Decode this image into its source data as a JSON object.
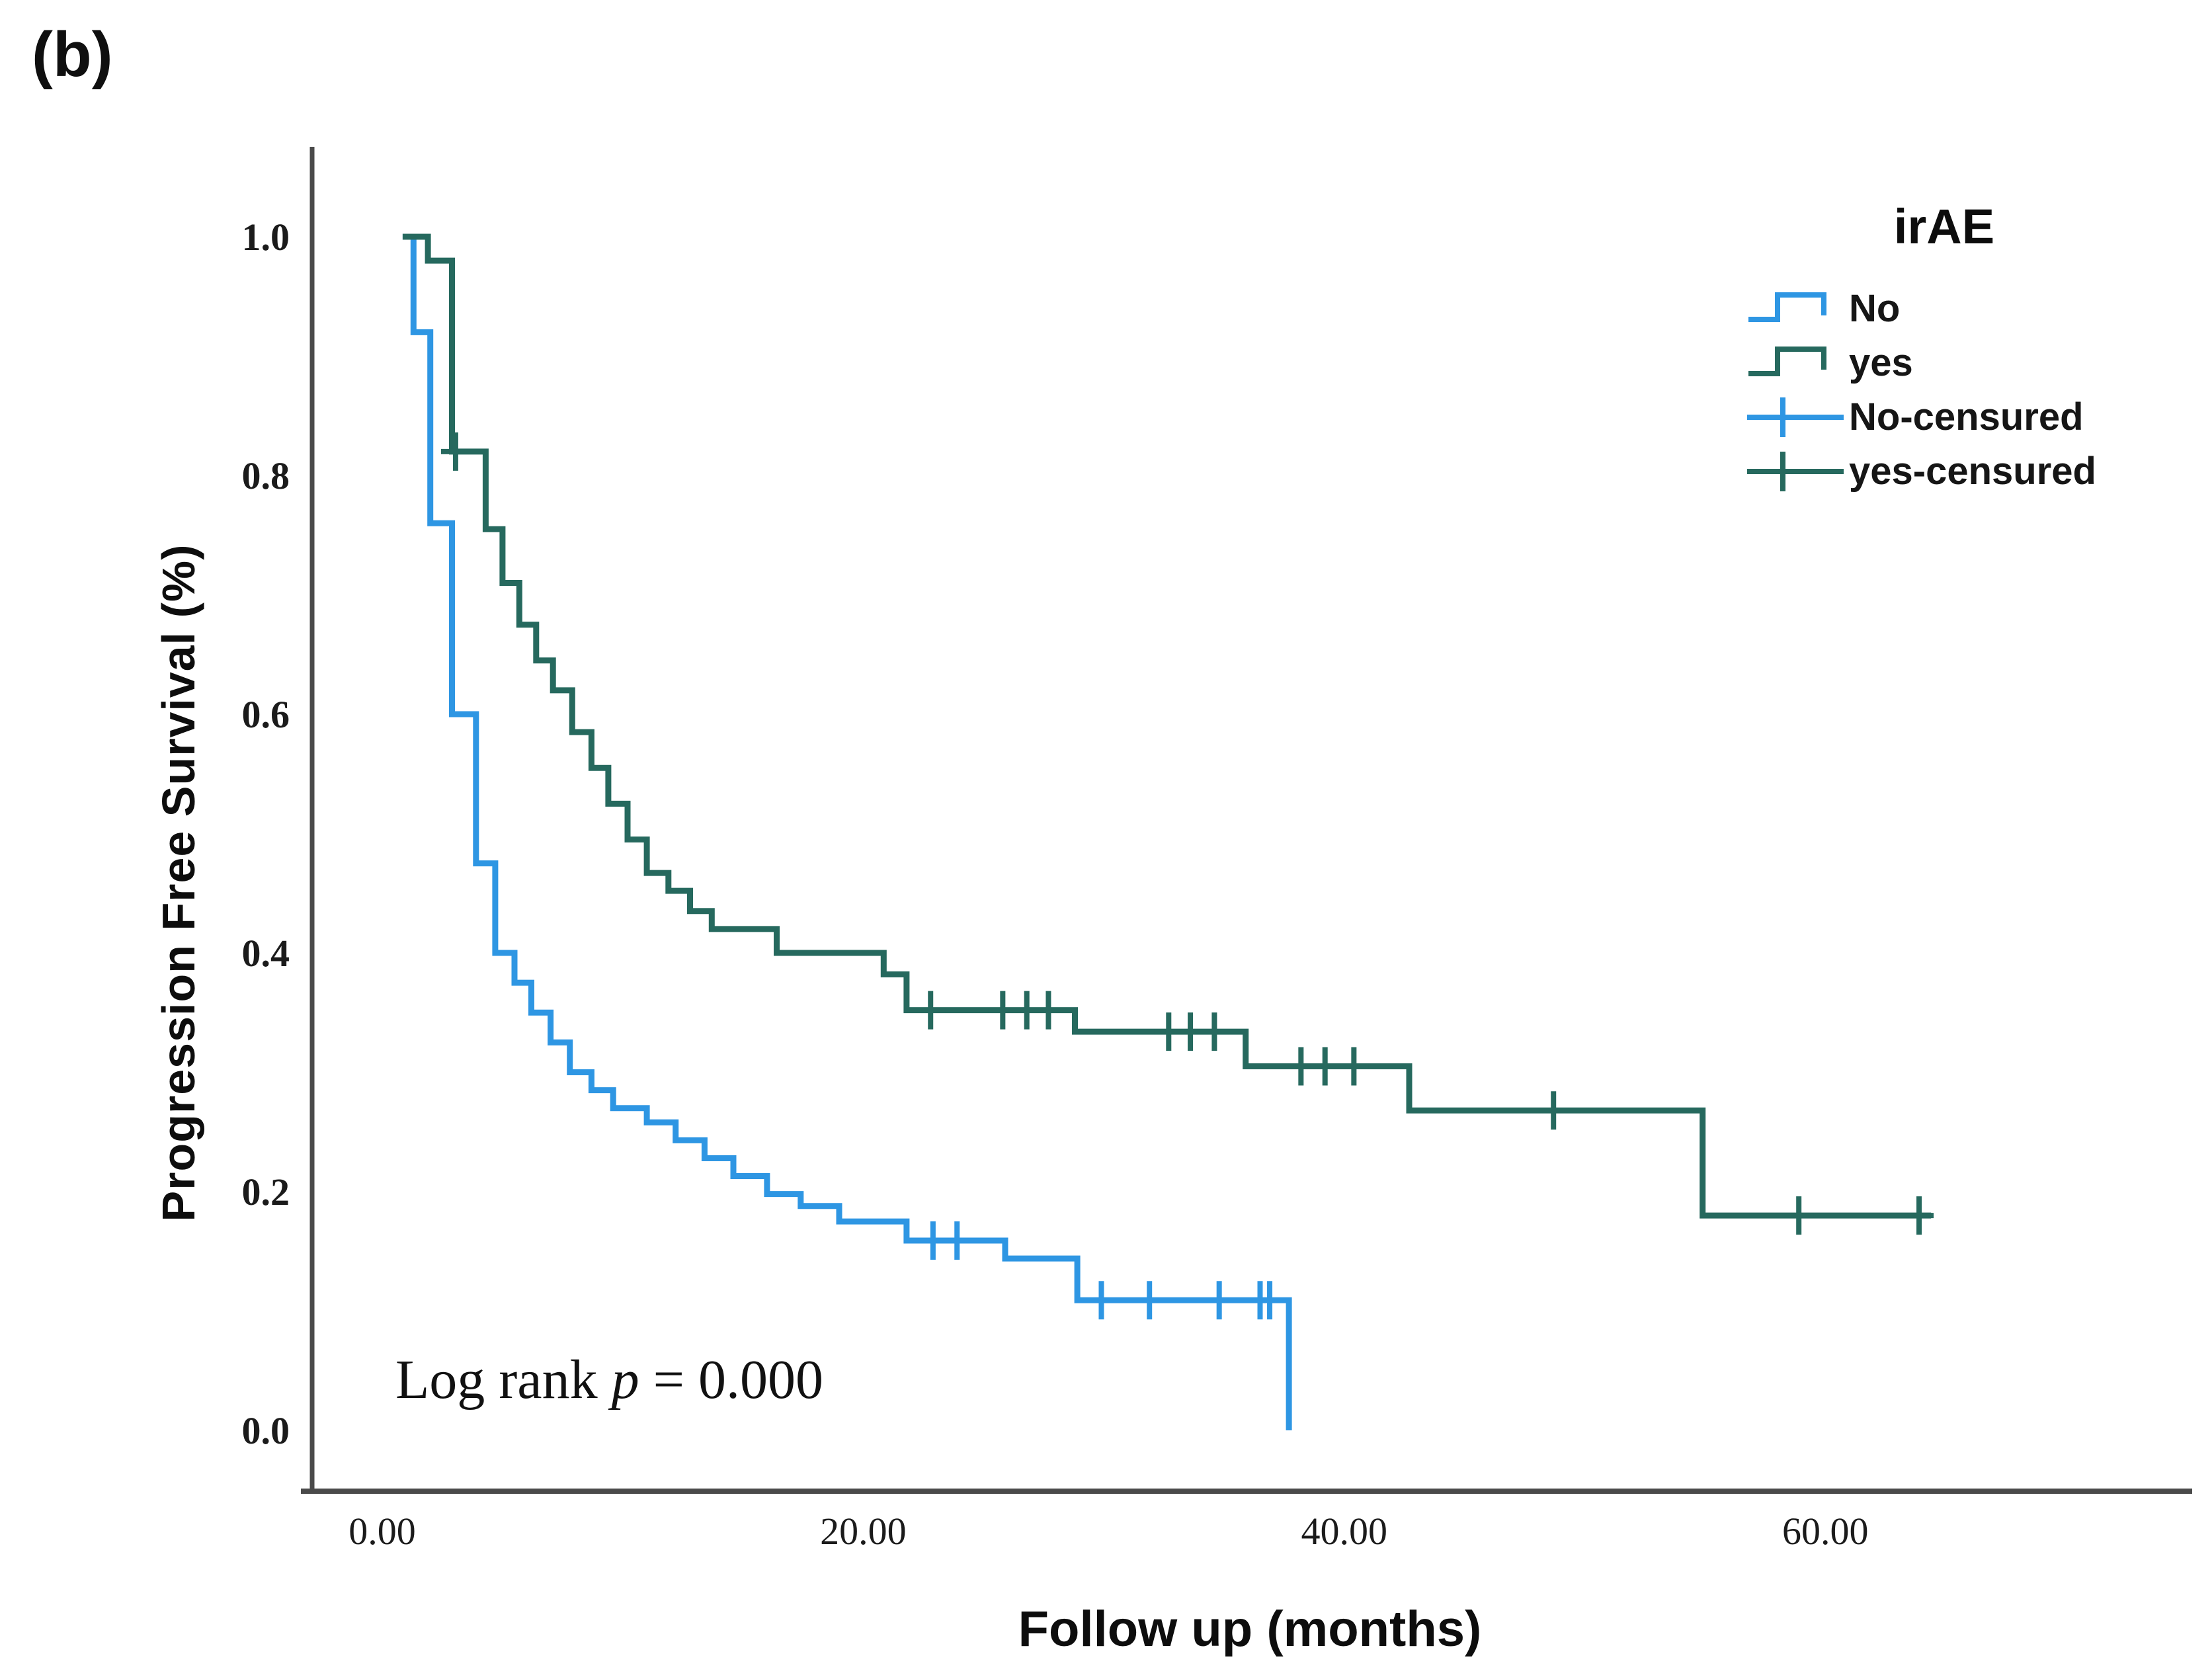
{
  "figure_label": "(b)",
  "y_axis_title": "Progression Free Survival (%)",
  "x_axis_title": "Follow up (months)",
  "annotation": {
    "prefix": "Log rank ",
    "p_symbol": "p",
    "suffix": " = 0.000"
  },
  "legend": {
    "title": "irAE",
    "items": [
      {
        "label": "No",
        "type": "step-line",
        "series": "No"
      },
      {
        "label": "yes",
        "type": "step-line",
        "series": "yes"
      },
      {
        "label": "No-censured",
        "type": "censor",
        "series": "No"
      },
      {
        "label": "yes-censured",
        "type": "censor",
        "series": "yes"
      }
    ]
  },
  "colors": {
    "no_series": "#2E96E3",
    "yes_series": "#26695E",
    "axis_line": "#4a4a4a",
    "text": "#1b1b1b"
  },
  "chart_data": {
    "type": "line",
    "subtype": "kaplan-meier-step",
    "title": "",
    "xlabel": "Follow up (months)",
    "ylabel": "Progression Free Survival (%)",
    "xlim": [
      0,
      75
    ],
    "ylim": [
      0,
      1.05
    ],
    "grid": false,
    "legend_position": "top-right",
    "annotation": "Log rank p = 0.000",
    "x_ticks": [
      {
        "value": 0,
        "label": "0.00"
      },
      {
        "value": 20,
        "label": "20.00"
      },
      {
        "value": 40,
        "label": "40.00"
      },
      {
        "value": 60,
        "label": "60.00"
      }
    ],
    "y_ticks": [
      {
        "value": 0.0,
        "label": "0.0"
      },
      {
        "value": 0.2,
        "label": "0.2"
      },
      {
        "value": 0.4,
        "label": "0.4"
      },
      {
        "value": 0.6,
        "label": "0.6"
      },
      {
        "value": 0.8,
        "label": "0.8"
      },
      {
        "value": 1.0,
        "label": "1.0"
      }
    ],
    "series": [
      {
        "name": "No",
        "color": "#2E96E3",
        "steps": [
          [
            0.85,
            1.0
          ],
          [
            1.3,
            0.92
          ],
          [
            2.0,
            0.76
          ],
          [
            2.9,
            0.6
          ],
          [
            3.9,
            0.475
          ],
          [
            4.7,
            0.4
          ],
          [
            5.5,
            0.375
          ],
          [
            6.2,
            0.35
          ],
          [
            7.0,
            0.325
          ],
          [
            7.8,
            0.3
          ],
          [
            8.7,
            0.285
          ],
          [
            9.6,
            0.27
          ],
          [
            11.0,
            0.258
          ],
          [
            12.2,
            0.243
          ],
          [
            13.4,
            0.228
          ],
          [
            14.6,
            0.213
          ],
          [
            16.0,
            0.198
          ],
          [
            17.4,
            0.188
          ],
          [
            19.0,
            0.175
          ],
          [
            21.8,
            0.159
          ],
          [
            25.9,
            0.144
          ],
          [
            28.9,
            0.109
          ],
          [
            37.7,
            0.0
          ]
        ],
        "censored": [
          [
            22.9,
            0.159
          ],
          [
            23.9,
            0.159
          ],
          [
            29.9,
            0.109
          ],
          [
            31.9,
            0.109
          ],
          [
            34.8,
            0.109
          ],
          [
            36.5,
            0.109
          ],
          [
            36.9,
            0.109
          ]
        ]
      },
      {
        "name": "yes",
        "color": "#26695E",
        "steps": [
          [
            0.85,
            1.0
          ],
          [
            1.9,
            0.98
          ],
          [
            2.9,
            0.82
          ],
          [
            4.3,
            0.755
          ],
          [
            5.0,
            0.71
          ],
          [
            5.7,
            0.675
          ],
          [
            6.4,
            0.645
          ],
          [
            7.1,
            0.62
          ],
          [
            7.9,
            0.585
          ],
          [
            8.7,
            0.555
          ],
          [
            9.4,
            0.525
          ],
          [
            10.2,
            0.495
          ],
          [
            11.0,
            0.467
          ],
          [
            11.9,
            0.452
          ],
          [
            12.8,
            0.435
          ],
          [
            13.7,
            0.42
          ],
          [
            16.4,
            0.4
          ],
          [
            20.85,
            0.382
          ],
          [
            21.8,
            0.352
          ],
          [
            28.8,
            0.334
          ],
          [
            35.9,
            0.305
          ],
          [
            42.7,
            0.268
          ],
          [
            54.9,
            0.18
          ],
          [
            64.4,
            0.18
          ]
        ],
        "censored": [
          [
            3.05,
            0.82
          ],
          [
            22.8,
            0.352
          ],
          [
            25.8,
            0.352
          ],
          [
            26.8,
            0.352
          ],
          [
            27.7,
            0.352
          ],
          [
            32.7,
            0.334
          ],
          [
            33.6,
            0.334
          ],
          [
            34.6,
            0.334
          ],
          [
            38.2,
            0.305
          ],
          [
            39.2,
            0.305
          ],
          [
            40.4,
            0.305
          ],
          [
            48.7,
            0.268
          ],
          [
            58.9,
            0.18
          ],
          [
            63.9,
            0.18
          ]
        ]
      }
    ]
  }
}
